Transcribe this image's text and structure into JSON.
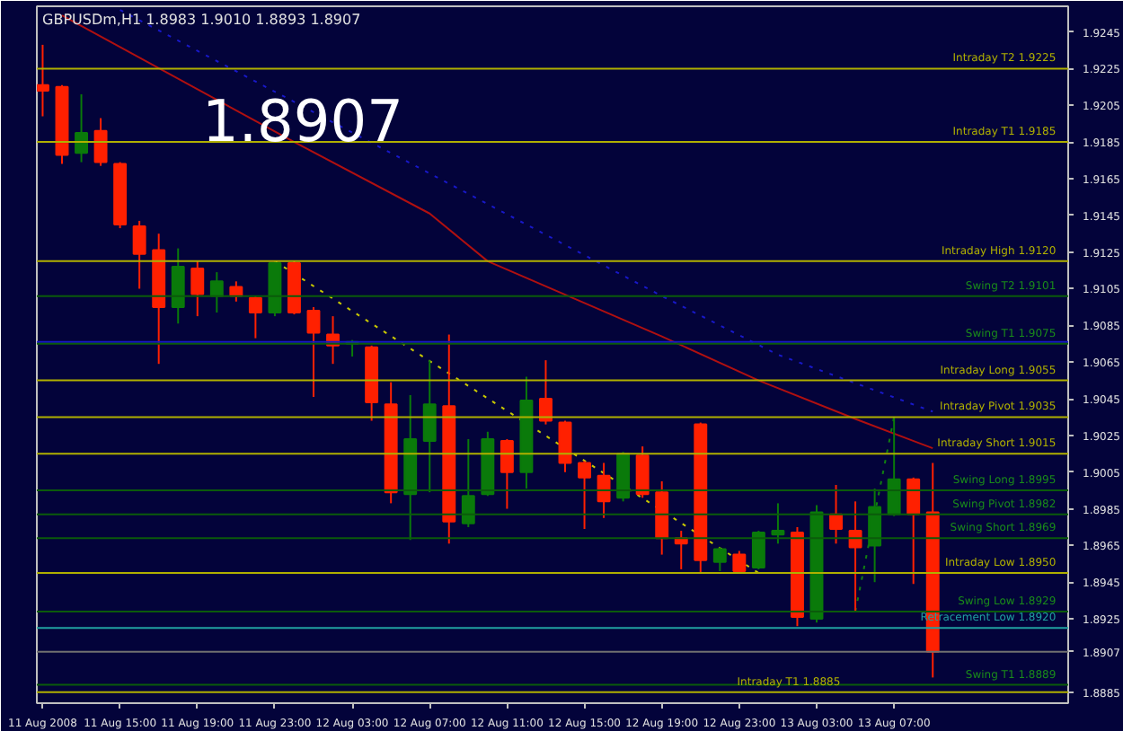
{
  "chart_data": {
    "type": "candlestick",
    "title": "GBPUSDm,H1  1.8983 1.9010 1.8893 1.8907",
    "annotations": [
      "1.8907"
    ],
    "x": [
      "2008-08-11T11:00",
      "2008-08-11T12:00",
      "2008-08-11T13:00",
      "2008-08-11T14:00",
      "2008-08-11T15:00",
      "2008-08-11T16:00",
      "2008-08-11T17:00",
      "2008-08-11T18:00",
      "2008-08-11T19:00",
      "2008-08-11T20:00",
      "2008-08-11T21:00",
      "2008-08-11T22:00",
      "2008-08-11T23:00",
      "2008-08-12T00:00",
      "2008-08-12T01:00",
      "2008-08-12T02:00",
      "2008-08-12T03:00",
      "2008-08-12T04:00",
      "2008-08-12T05:00",
      "2008-08-12T06:00",
      "2008-08-12T07:00",
      "2008-08-12T08:00",
      "2008-08-12T09:00",
      "2008-08-12T10:00",
      "2008-08-12T11:00",
      "2008-08-12T12:00",
      "2008-08-12T13:00",
      "2008-08-12T14:00",
      "2008-08-12T15:00",
      "2008-08-12T16:00",
      "2008-08-12T17:00",
      "2008-08-12T18:00",
      "2008-08-12T19:00",
      "2008-08-12T20:00",
      "2008-08-12T21:00",
      "2008-08-12T22:00",
      "2008-08-12T23:00",
      "2008-08-13T00:00",
      "2008-08-13T01:00",
      "2008-08-13T02:00",
      "2008-08-13T03:00",
      "2008-08-13T04:00",
      "2008-08-13T05:00",
      "2008-08-13T06:00",
      "2008-08-13T07:00",
      "2008-08-13T08:00",
      "2008-08-13T09:00"
    ],
    "ohlc": [
      [
        1.9216,
        1.9238,
        1.9199,
        1.9213
      ],
      [
        1.9215,
        1.9216,
        1.9173,
        1.9178
      ],
      [
        1.9179,
        1.9211,
        1.9174,
        1.919
      ],
      [
        1.9191,
        1.9198,
        1.9172,
        1.9174
      ],
      [
        1.9173,
        1.9174,
        1.9138,
        1.914
      ],
      [
        1.9139,
        1.9142,
        1.9105,
        1.9124
      ],
      [
        1.9126,
        1.9135,
        1.9064,
        1.9095
      ],
      [
        1.9095,
        1.9127,
        1.9086,
        1.9117
      ],
      [
        1.9116,
        1.912,
        1.909,
        1.9102
      ],
      [
        1.9101,
        1.9114,
        1.9092,
        1.9109
      ],
      [
        1.9106,
        1.9109,
        1.9098,
        1.9101
      ],
      [
        1.91,
        1.9101,
        1.9078,
        1.9092
      ],
      [
        1.9092,
        1.912,
        1.909,
        1.9119
      ],
      [
        1.9119,
        1.912,
        1.9091,
        1.9092
      ],
      [
        1.9093,
        1.9095,
        1.9046,
        1.9081
      ],
      [
        1.908,
        1.909,
        1.9064,
        1.9074
      ],
      [
        1.9075,
        1.9077,
        1.9068,
        1.9076
      ],
      [
        1.9073,
        1.9074,
        1.9033,
        1.9043
      ],
      [
        1.9042,
        1.9054,
        1.8988,
        1.8994
      ],
      [
        1.8993,
        1.9047,
        1.8968,
        1.9023
      ],
      [
        1.9022,
        1.9066,
        1.8994,
        1.9042
      ],
      [
        1.9041,
        1.908,
        1.8966,
        1.8978
      ],
      [
        1.8977,
        1.9023,
        1.8975,
        1.8992
      ],
      [
        1.8993,
        1.9027,
        1.8992,
        1.9023
      ],
      [
        1.9022,
        1.9023,
        1.8985,
        1.9005
      ],
      [
        1.9005,
        1.9057,
        1.8996,
        1.9044
      ],
      [
        1.9045,
        1.9066,
        1.9031,
        1.9033
      ],
      [
        1.9032,
        1.9033,
        1.9005,
        1.901
      ],
      [
        1.901,
        1.9011,
        1.8974,
        1.9002
      ],
      [
        1.9003,
        1.901,
        1.898,
        1.8989
      ],
      [
        1.8991,
        1.9016,
        1.8989,
        1.9015
      ],
      [
        1.9014,
        1.9019,
        1.8991,
        1.8993
      ],
      [
        1.8994,
        1.9,
        1.896,
        1.8969
      ],
      [
        1.8969,
        1.8973,
        1.8952,
        1.8966
      ],
      [
        1.9031,
        1.9032,
        1.895,
        1.8957
      ],
      [
        1.8956,
        1.8964,
        1.8951,
        1.8963
      ],
      [
        1.896,
        1.8962,
        1.895,
        1.8951
      ],
      [
        1.8953,
        1.8973,
        1.8952,
        1.8972
      ],
      [
        1.8971,
        1.8988,
        1.8966,
        1.8973
      ],
      [
        1.8972,
        1.8975,
        1.8921,
        1.8926
      ],
      [
        1.8925,
        1.8987,
        1.8923,
        1.8983
      ],
      [
        1.8982,
        1.8998,
        1.8966,
        1.8974
      ],
      [
        1.8973,
        1.8989,
        1.8929,
        1.8964
      ],
      [
        1.8965,
        1.8996,
        1.8945,
        1.8986
      ],
      [
        1.8982,
        1.9035,
        1.8981,
        1.9001
      ],
      [
        1.9001,
        1.9002,
        1.8944,
        1.8982
      ],
      [
        1.8983,
        1.901,
        1.8893,
        1.8907
      ]
    ],
    "colors": [
      "#ff2000",
      "#ff2000",
      "#0a7a0a",
      "#ff2000",
      "#ff2000",
      "#ff2000",
      "#ff2000",
      "#0a7a0a",
      "#ff2000",
      "#0a7a0a",
      "#ff2000",
      "#ff2000",
      "#0a7a0a",
      "#ff2000",
      "#ff2000",
      "#ff2000",
      "#0a7a0a",
      "#ff2000",
      "#ff2000",
      "#0a7a0a",
      "#0a7a0a",
      "#ff2000",
      "#0a7a0a",
      "#0a7a0a",
      "#ff2000",
      "#0a7a0a",
      "#ff2000",
      "#ff2000",
      "#ff2000",
      "#ff2000",
      "#0a7a0a",
      "#ff2000",
      "#ff2000",
      "#ff2000",
      "#ff2000",
      "#0a7a0a",
      "#ff2000",
      "#0a7a0a",
      "#0a7a0a",
      "#ff2000",
      "#0a7a0a",
      "#ff2000",
      "#ff2000",
      "#0a7a0a",
      "#0a7a0a",
      "#ff2000",
      "#ff2000"
    ],
    "series": [
      {
        "type": "line",
        "color": "#b01010",
        "line_style": "solid",
        "x": [
          "2008-08-11T12:00",
          "2008-08-12T00:00",
          "2008-08-12T07:00",
          "2008-08-12T10:00",
          "2008-08-12T19:00",
          "2008-08-13T00:00",
          "2008-08-13T05:00",
          "2008-08-13T09:00"
        ],
        "values": [
          1.9254,
          1.9185,
          1.9146,
          1.912,
          1.9079,
          1.9055,
          1.9034,
          1.9018
        ]
      },
      {
        "type": "line",
        "color": "#1818c8",
        "line_style": "dotted",
        "x": [
          "2008-08-11T15:00",
          "2008-08-12T19:00",
          "2008-08-13T01:00",
          "2008-08-13T09:00"
        ],
        "values": [
          1.9257,
          1.9101,
          1.9069,
          1.9038
        ]
      },
      {
        "type": "line",
        "color": "#c8c800",
        "line_style": "dotted",
        "x": [
          "2008-08-11T23:00",
          "2008-08-13T00:00"
        ],
        "values": [
          1.912,
          1.895
        ]
      },
      {
        "type": "line",
        "color": "#108010",
        "line_style": "dotted",
        "x": [
          "2008-08-13T05:00",
          "2008-08-13T07:00"
        ],
        "values": [
          1.8929,
          1.9035
        ]
      }
    ],
    "ref_lines": [
      {
        "axis": "y",
        "value": 1.9225,
        "label": "Intraday T2   1.9225",
        "color": "#b0b000"
      },
      {
        "axis": "y",
        "value": 1.9185,
        "label": "Intraday T1   1.9185",
        "color": "#b0b000"
      },
      {
        "axis": "y",
        "value": 1.912,
        "label": "Intraday High   1.9120",
        "color": "#b0b000"
      },
      {
        "axis": "y",
        "value": 1.9101,
        "label": "Swing T2   1.9101",
        "color": "#0b5b0b"
      },
      {
        "axis": "y",
        "value": 1.9076,
        "color": "#1818c8"
      },
      {
        "axis": "y",
        "value": 1.9075,
        "label": "Swing T1   1.9075",
        "color": "#0b5b0b"
      },
      {
        "axis": "y",
        "value": 1.9055,
        "label": "Intraday Long   1.9055",
        "color": "#b0b000"
      },
      {
        "axis": "y",
        "value": 1.9035,
        "label": "Intraday Pivot   1.9035",
        "color": "#b0b000"
      },
      {
        "axis": "y",
        "value": 1.9015,
        "label": "Intraday Short   1.9015",
        "color": "#b0b000"
      },
      {
        "axis": "y",
        "value": 1.8995,
        "label": "Swing Long   1.8995",
        "color": "#0b5b0b"
      },
      {
        "axis": "y",
        "value": 1.8982,
        "label": "Swing Pivot   1.8982",
        "color": "#0b5b0b"
      },
      {
        "axis": "y",
        "value": 1.8969,
        "label": "Swing Short   1.8969",
        "color": "#0b5b0b"
      },
      {
        "axis": "y",
        "value": 1.895,
        "label": "Intraday Low   1.8950",
        "color": "#b0b000"
      },
      {
        "axis": "y",
        "value": 1.8929,
        "label": "Swing Low   1.8929",
        "color": "#0b5b0b"
      },
      {
        "axis": "y",
        "value": 1.892,
        "label": "Retracement Low   1.8920",
        "color": "#20a0a0"
      },
      {
        "axis": "y",
        "value": 1.8907,
        "color": "#707070"
      },
      {
        "axis": "y",
        "value": 1.8889,
        "label": "Swing T1   1.8889",
        "color": "#0b5b0b"
      },
      {
        "axis": "y",
        "value": 1.8885,
        "label": "Intraday T1   1.8885",
        "color": "#b0b000"
      }
    ],
    "xlim": [
      "2008-08-11T10:42",
      "2008-08-13T16:00"
    ],
    "xticks": [
      {
        "value": "2008-08-11T11:00",
        "label": "11 Aug 2008"
      },
      {
        "value": "2008-08-11T15:00",
        "label": "11 Aug 15:00"
      },
      {
        "value": "2008-08-11T19:00",
        "label": "11 Aug 19:00"
      },
      {
        "value": "2008-08-11T23:00",
        "label": "11 Aug 23:00"
      },
      {
        "value": "2008-08-12T03:00",
        "label": "12 Aug 03:00"
      },
      {
        "value": "2008-08-12T07:00",
        "label": "12 Aug 07:00"
      },
      {
        "value": "2008-08-12T11:00",
        "label": "12 Aug 11:00"
      },
      {
        "value": "2008-08-12T15:00",
        "label": "12 Aug 15:00"
      },
      {
        "value": "2008-08-12T19:00",
        "label": "12 Aug 19:00"
      },
      {
        "value": "2008-08-12T23:00",
        "label": "12 Aug 23:00"
      },
      {
        "value": "2008-08-13T03:00",
        "label": "13 Aug 03:00"
      },
      {
        "value": "2008-08-13T07:00",
        "label": "13 Aug 07:00"
      }
    ],
    "ylim": [
      1.8879,
      1.9259
    ],
    "yticks": [
      1.9245,
      1.9225,
      1.9205,
      1.9185,
      1.9165,
      1.9145,
      1.9125,
      1.9105,
      1.9085,
      1.9065,
      1.9045,
      1.9025,
      1.9005,
      1.8985,
      1.8965,
      1.8945,
      1.8925,
      1.8907,
      1.8885
    ]
  }
}
